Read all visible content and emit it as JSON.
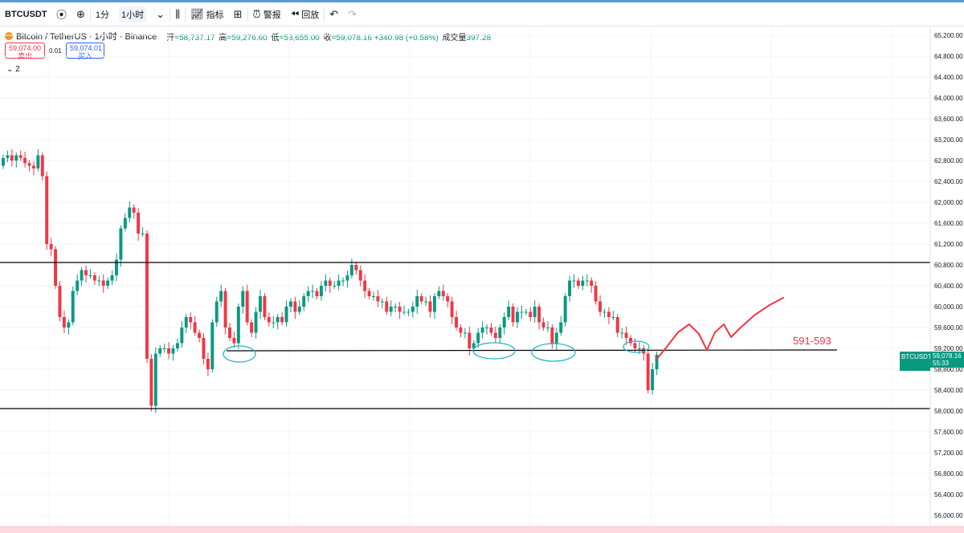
{
  "toolbar": {
    "symbol": "BTCUSDT",
    "interval_1m": "1分",
    "interval_1h": "1小时",
    "indicators": "指标",
    "alerts": "警报",
    "replay": "回放"
  },
  "legend": {
    "title": "Bitcoin / TetherUS · 1小时 · Binance",
    "open_label": "开",
    "open": "=58,737.17",
    "high_label": "高",
    "high": "=59,276.60",
    "low_label": "低",
    "low": "=58,655.00",
    "close_label": "收",
    "close": "=59,078.16",
    "change": "+340.98 (+0.58%)",
    "volume_label": "成交量",
    "volume": "397.28"
  },
  "trade": {
    "sell_price": "59,074.00",
    "sell_label": "卖出",
    "spread": "0.01",
    "buy_price": "59,074.01",
    "buy_label": "买入"
  },
  "collapse_count": "2",
  "price_axis": [
    "65,200.00",
    "64,800.00",
    "64,400.00",
    "64,000.00",
    "63,600.00",
    "63,200.00",
    "62,800.00",
    "62,400.00",
    "62,000.00",
    "61,600.00",
    "61,200.00",
    "60,800.00",
    "60,400.00",
    "60,000.00",
    "59,600.00",
    "59,200.00",
    "58,800.00",
    "58,400.00",
    "58,000.00",
    "57,600.00",
    "57,200.00",
    "56,800.00",
    "56,400.00",
    "56,000.00"
  ],
  "last_price": {
    "symbol": "BTCUSDT",
    "price": "59,078.16",
    "countdown": "55:33"
  },
  "annotation": "591-593",
  "colors": {
    "up": "#089981",
    "down": "#f23645",
    "circle": "#22b5c9",
    "drawn": "#f23645",
    "line": "#000000"
  }
}
